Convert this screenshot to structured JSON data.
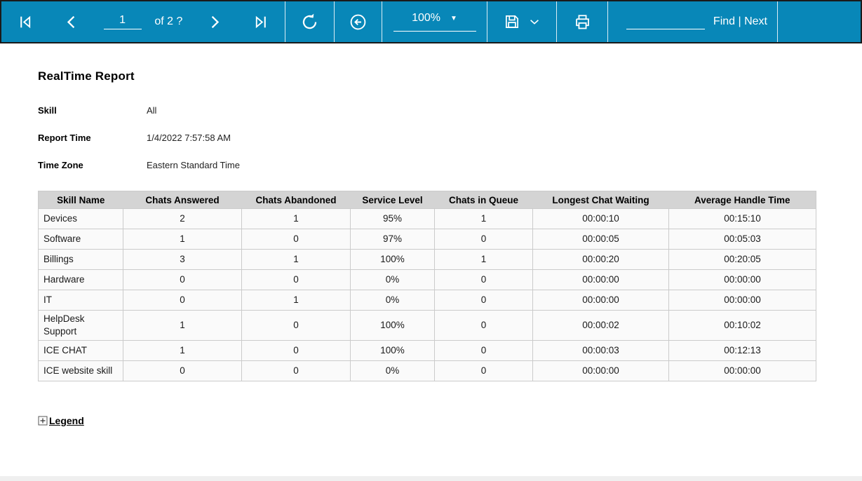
{
  "toolbar": {
    "page_current": "1",
    "pages_label": "of 2 ?",
    "zoom_value": "100%",
    "zoom_caret_glyph": "▼",
    "find_label": "Find",
    "find_separator": " | ",
    "next_label": "Next",
    "icons": {
      "first_page": "first-page-icon",
      "previous_page": "previous-page-icon",
      "next_page": "next-page-icon",
      "last_page": "last-page-icon",
      "refresh": "refresh-icon",
      "back": "back-circle-icon",
      "save": "save-floppy-icon",
      "save_dropdown": "chevron-down-icon",
      "print": "printer-icon"
    },
    "colors": {
      "background": "#0887B8",
      "foreground": "#FFFFFF",
      "border": "#1A1A1A"
    }
  },
  "report": {
    "title": "RealTime Report",
    "fields": [
      {
        "label": "Skill",
        "value": "All"
      },
      {
        "label": "Report Time",
        "value": "1/4/2022 7:57:58 AM"
      },
      {
        "label": "Time Zone",
        "value": "Eastern Standard Time"
      }
    ],
    "table": {
      "headers": [
        "Skill Name",
        "Chats Answered",
        "Chats Abandoned",
        "Service Level",
        "Chats in Queue",
        "Longest Chat Waiting",
        "Average Handle Time"
      ],
      "rows": [
        [
          "Devices",
          "2",
          "1",
          "95%",
          "1",
          "00:00:10",
          "00:15:10"
        ],
        [
          "Software",
          "1",
          "0",
          "97%",
          "0",
          "00:00:05",
          "00:05:03"
        ],
        [
          "Billings",
          "3",
          "1",
          "100%",
          "1",
          "00:00:20",
          "00:20:05"
        ],
        [
          "Hardware",
          "0",
          "0",
          "0%",
          "0",
          "00:00:00",
          "00:00:00"
        ],
        [
          "IT",
          "0",
          "1",
          "0%",
          "0",
          "00:00:00",
          "00:00:00"
        ],
        [
          "HelpDesk Support",
          "1",
          "0",
          "100%",
          "0",
          "00:00:02",
          "00:10:02"
        ],
        [
          "ICE CHAT",
          "1",
          "0",
          "100%",
          "0",
          "00:00:03",
          "00:12:13"
        ],
        [
          "ICE website skill",
          "0",
          "0",
          "0%",
          "0",
          "00:00:00",
          "00:00:00"
        ]
      ],
      "colors": {
        "header_bg": "#D4D4D4",
        "row_bg": "#FAFAFA",
        "border": "#CBCBCB"
      }
    },
    "legend_label": "Legend",
    "legend_toggle_glyph": "⊞"
  }
}
